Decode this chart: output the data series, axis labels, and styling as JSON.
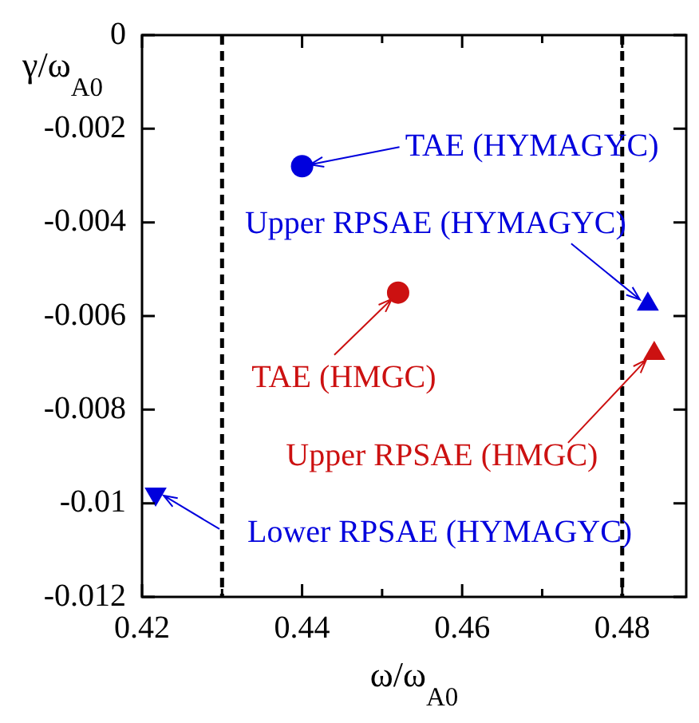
{
  "chart_data": {
    "type": "scatter",
    "xlabel": "ω/ω$_{A0}$",
    "ylabel": "γ/ω$_{A0}$",
    "xlim": [
      0.42,
      0.488
    ],
    "xticks": [
      0.42,
      {
        "value": 0.43,
        "label": null
      },
      0.44,
      {
        "value": 0.45,
        "label": null
      },
      0.46,
      {
        "value": 0.47,
        "label": null
      },
      0.48
    ],
    "ylim": [
      -0.012,
      0
    ],
    "yticks": [
      -0.012,
      -0.01,
      -0.008,
      -0.006,
      -0.004,
      -0.002,
      0
    ],
    "grid": false,
    "legend": false,
    "ref_lines": [
      {
        "axis": "x",
        "value": 0.43,
        "color": "#000000",
        "line_style": "dashed"
      },
      {
        "axis": "x",
        "value": 0.48,
        "color": "#000000",
        "line_style": "dashed"
      }
    ],
    "annotations": [
      {
        "text": "TAE (HYMAGYC)",
        "x": 0.44,
        "y": -0.0028
      },
      {
        "text": "TAE (HMGC)",
        "x": 0.452,
        "y": -0.0055
      },
      {
        "text": "Upper RPSAE (HYMAGYC)",
        "x": 0.4832,
        "y": -0.00575
      },
      {
        "text": "Upper RPSAE (HMGC)",
        "x": 0.484,
        "y": -0.0068
      },
      {
        "text": "Lower RPSAE (HYMAGYC)",
        "x": 0.4217,
        "y": -0.0098
      }
    ],
    "series": [
      {
        "color": "#0000dd",
        "marker": "circle",
        "x": [
          0.44
        ],
        "values": [
          -0.0028
        ]
      },
      {
        "color": "#cc1111",
        "marker": "circle",
        "x": [
          0.452
        ],
        "values": [
          -0.0055
        ]
      },
      {
        "color": "#0000dd",
        "marker": "triangle",
        "x": [
          0.4832
        ],
        "values": [
          -0.00575
        ]
      },
      {
        "color": "#cc1111",
        "marker": "triangle",
        "x": [
          0.484
        ],
        "values": [
          -0.0068
        ]
      },
      {
        "color": "#0000dd",
        "marker": "triangle_down",
        "x": [
          0.4217
        ],
        "values": [
          -0.0098
        ]
      }
    ]
  }
}
